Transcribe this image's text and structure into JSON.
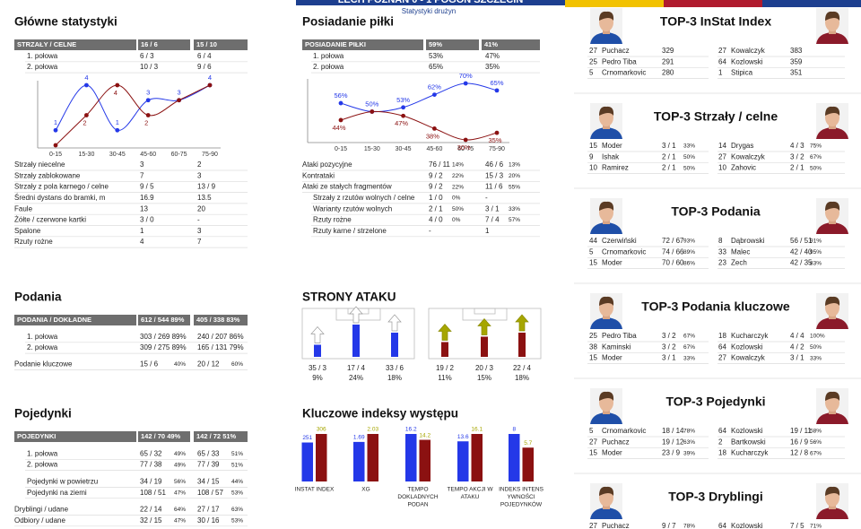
{
  "header": {
    "title": "LECH POZNAŃ 0 - 1 POGOŃ SZCZECIN",
    "subtitle": "Statystyki drużyn"
  },
  "glowne": {
    "title": "Główne statystyki",
    "table": {
      "head": [
        "STRZAŁY / CELNE",
        "16 / 6",
        "15 / 10"
      ],
      "halves": [
        [
          "1. połowa",
          "6 / 3",
          "6 / 4"
        ],
        [
          "2. połowa",
          "10 / 3",
          "9 / 6"
        ]
      ]
    },
    "chart_data": {
      "type": "line",
      "categories": [
        "0-15",
        "15-30",
        "30-45",
        "45-60",
        "60-75",
        "75-90"
      ],
      "ylim": [
        0,
        4
      ],
      "series": [
        {
          "color": "#2438e8",
          "values": [
            1,
            4,
            1,
            3,
            3,
            4
          ],
          "value_labels": [
            "1",
            "4",
            "1",
            "3",
            "3",
            "4"
          ]
        },
        {
          "color": "#8b1111",
          "values": [
            0,
            2,
            4,
            2,
            3,
            4
          ],
          "value_labels": [
            null,
            "2",
            "4",
            "2",
            null,
            null
          ]
        }
      ]
    },
    "stats": {
      "rows": [
        [
          "Strzały niecelne",
          "3",
          "2"
        ],
        [
          "Strzały zablokowane",
          "7",
          "3"
        ],
        [
          "Strzały z pola karnego / celne",
          "9 / 5",
          "13 / 9"
        ],
        [
          "Średni dystans do bramki, m",
          "16.9",
          "13.5"
        ],
        [
          "Faule",
          "13",
          "20"
        ],
        [
          "Żółte / czerwone kartki",
          "3 / 0",
          "-"
        ],
        [
          "Spalone",
          "1",
          "3"
        ],
        [
          "Rzuty rożne",
          "4",
          "7"
        ]
      ]
    }
  },
  "posiadanie": {
    "title": "Posiadanie piłki",
    "table": {
      "head": [
        "POSIADANIE PIŁKI",
        "59%",
        "41%"
      ],
      "halves": [
        [
          "1. połowa",
          "53%",
          "47%"
        ],
        [
          "2. połowa",
          "65%",
          "35%"
        ]
      ]
    },
    "chart_data": {
      "type": "line",
      "categories": [
        "0-15",
        "15-30",
        "30-45",
        "45-60",
        "60-75",
        "75-90"
      ],
      "ylim": [
        30,
        70
      ],
      "series": [
        {
          "color": "#2438e8",
          "values": [
            56,
            50,
            53,
            62,
            70,
            65
          ],
          "value_labels": [
            "56%",
            "50%",
            "53%",
            "62%",
            "70%",
            "65%"
          ]
        },
        {
          "color": "#8b1111",
          "values": [
            44,
            50,
            47,
            38,
            30,
            35
          ],
          "value_labels": [
            "44%",
            null,
            "47%",
            "38%",
            "30%",
            "35%"
          ]
        }
      ]
    },
    "stats": {
      "rows": [
        [
          "Ataki pozycyjne",
          "76 / 11",
          "14%",
          "46 / 6",
          "13%"
        ],
        [
          "Kontrataki",
          "9 / 2",
          "22%",
          "15 / 3",
          "20%"
        ],
        [
          "Ataki ze stałych fragmentów",
          "9 / 2",
          "22%",
          "11 / 6",
          "55%"
        ]
      ],
      "sub": [
        [
          "Strzały z rzutów wolnych / celne",
          "1 / 0",
          "0%",
          "-"
        ],
        [
          "Warianty rzutów wolnych",
          "2 / 1",
          "50%",
          "3 / 1",
          "33%"
        ],
        [
          "Rzuty rożne",
          "4 / 0",
          "0%",
          "7 / 4",
          "57%"
        ],
        [
          "Rzuty karne / strzelone",
          "-",
          "1"
        ]
      ]
    }
  },
  "podania": {
    "title": "Podania",
    "table": {
      "head": [
        "PODANIA / DOKŁADNE",
        "612 / 544 89%",
        "405 / 338 83%"
      ],
      "halves": [
        [
          "1. połowa",
          "303 / 269 89%",
          "240 / 207 86%"
        ],
        [
          "2. połowa",
          "309 / 275 89%",
          "165 / 131 79%"
        ]
      ],
      "rows": [
        [
          "Podanie kluczowe",
          "15 / 6",
          "40%",
          "20 / 12",
          "60%"
        ]
      ]
    }
  },
  "pojedynki": {
    "title": "Pojedynki",
    "table": {
      "head": [
        "POJEDYNKI",
        "142 / 70 49%",
        "142 / 72 51%"
      ],
      "halves": [
        [
          "1. połowa",
          "65 / 32",
          "49%",
          "65 / 33",
          "51%"
        ],
        [
          "2. połowa",
          "77 / 38",
          "49%",
          "77 / 39",
          "51%"
        ]
      ],
      "sub": [
        [
          "Pojedynki w powietrzu",
          "34 / 19",
          "56%",
          "34 / 15",
          "44%"
        ],
        [
          "Pojedynki na ziemi",
          "108 / 51",
          "47%",
          "108 / 57",
          "53%"
        ]
      ],
      "rows": [
        [
          "Dryblingi / udane",
          "22 / 14",
          "64%",
          "27 / 17",
          "63%"
        ],
        [
          "Odbiory / udane",
          "32 / 15",
          "47%",
          "30 / 16",
          "53%"
        ]
      ]
    }
  },
  "strony": {
    "title": "STRONY ATAKU",
    "colors": [
      "#2438e8",
      "#8b1111"
    ],
    "teams": [
      [
        {
          "v": "35 / 3",
          "pct": 9,
          "pct_label": "9%"
        },
        {
          "v": "17 / 4",
          "pct": 24,
          "pct_label": "24%"
        },
        {
          "v": "33 / 6",
          "pct": 18,
          "pct_label": "18%"
        }
      ],
      [
        {
          "v": "19 / 2",
          "pct": 11,
          "pct_label": "11%"
        },
        {
          "v": "20 / 3",
          "pct": 15,
          "pct_label": "15%"
        },
        {
          "v": "22 / 4",
          "pct": 18,
          "pct_label": "18%"
        }
      ]
    ]
  },
  "kluczowe": {
    "title": "Kluczowe indeksy występu",
    "chart_data": {
      "type": "bar",
      "colors": [
        "#2438e8",
        "#8b1111"
      ],
      "label_colors": [
        "#2438e8",
        "#a6a600"
      ],
      "groups": [
        {
          "label": [
            "INSTAT INDEX"
          ],
          "values": [
            251,
            306
          ]
        },
        {
          "label": [
            "XG"
          ],
          "values": [
            1.69,
            2.03
          ]
        },
        {
          "label": [
            "TEMPO",
            "DOKLADNYCH",
            "PODAN"
          ],
          "values": [
            16.2,
            14.2
          ]
        },
        {
          "label": [
            "TEMPO AKCJI W",
            "ATAKU"
          ],
          "values": [
            13.6,
            16.1
          ]
        },
        {
          "label": [
            "INDEKS INTENS",
            "YWNOŚCI",
            "POJEDYNKÓW"
          ],
          "values": [
            8,
            5.7
          ]
        }
      ]
    }
  },
  "top3": [
    {
      "title": "TOP-3 InStat Index",
      "rows": [
        [
          [
            "27",
            "Puchacz",
            "329"
          ],
          [
            "27",
            "Kowalczyk",
            "383"
          ]
        ],
        [
          [
            "25",
            "Pedro Tiba",
            "291"
          ],
          [
            "64",
            "Kozlowski",
            "359"
          ]
        ],
        [
          [
            "5",
            "Crnomarkovic",
            "280"
          ],
          [
            "1",
            "Stipica",
            "351"
          ]
        ]
      ]
    },
    {
      "title": "TOP-3 Strzały / celne",
      "rows": [
        [
          [
            "15",
            "Moder",
            "3 / 1",
            "33%"
          ],
          [
            "14",
            "Drygas",
            "4 / 3",
            "75%"
          ]
        ],
        [
          [
            "9",
            "Ishak",
            "2 / 1",
            "50%"
          ],
          [
            "27",
            "Kowalczyk",
            "3 / 2",
            "67%"
          ]
        ],
        [
          [
            "10",
            "Ramirez",
            "2 / 1",
            "50%"
          ],
          [
            "10",
            "Zahovic",
            "2 / 1",
            "50%"
          ]
        ]
      ]
    },
    {
      "title": "TOP-3 Podania",
      "rows": [
        [
          [
            "44",
            "Czerwiński",
            "72 / 67",
            "93%"
          ],
          [
            "8",
            "Dąbrowski",
            "56 / 51",
            "91%"
          ]
        ],
        [
          [
            "5",
            "Crnomarkovic",
            "74 / 66",
            "89%"
          ],
          [
            "33",
            "Malec",
            "42 / 40",
            "95%"
          ]
        ],
        [
          [
            "15",
            "Moder",
            "70 / 60",
            "86%"
          ],
          [
            "23",
            "Zech",
            "42 / 35",
            "83%"
          ]
        ]
      ]
    },
    {
      "title": "TOP-3 Podania kluczowe",
      "rows": [
        [
          [
            "25",
            "Pedro Tiba",
            "3 / 2",
            "67%"
          ],
          [
            "18",
            "Kucharczyk",
            "4 / 4",
            "100%"
          ]
        ],
        [
          [
            "38",
            "Kaminski",
            "3 / 2",
            "67%"
          ],
          [
            "64",
            "Kozlowski",
            "4 / 2",
            "50%"
          ]
        ],
        [
          [
            "15",
            "Moder",
            "3 / 1",
            "33%"
          ],
          [
            "27",
            "Kowalczyk",
            "3 / 1",
            "33%"
          ]
        ]
      ]
    },
    {
      "title": "TOP-3 Pojedynki",
      "rows": [
        [
          [
            "5",
            "Crnomarkovic",
            "18 / 14",
            "78%"
          ],
          [
            "64",
            "Kozlowski",
            "19 / 11",
            "58%"
          ]
        ],
        [
          [
            "27",
            "Puchacz",
            "19 / 12",
            "63%"
          ],
          [
            "2",
            "Bartkowski",
            "16 / 9",
            "56%"
          ]
        ],
        [
          [
            "15",
            "Moder",
            "23 / 9",
            "39%"
          ],
          [
            "18",
            "Kucharczyk",
            "12 / 8",
            "67%"
          ]
        ]
      ]
    },
    {
      "title": "TOP-3 Dryblingi",
      "rows": [
        [
          [
            "27",
            "Puchacz",
            "9 / 7",
            "78%"
          ],
          [
            "64",
            "Kozlowski",
            "7 / 5",
            "71%"
          ]
        ]
      ]
    }
  ]
}
